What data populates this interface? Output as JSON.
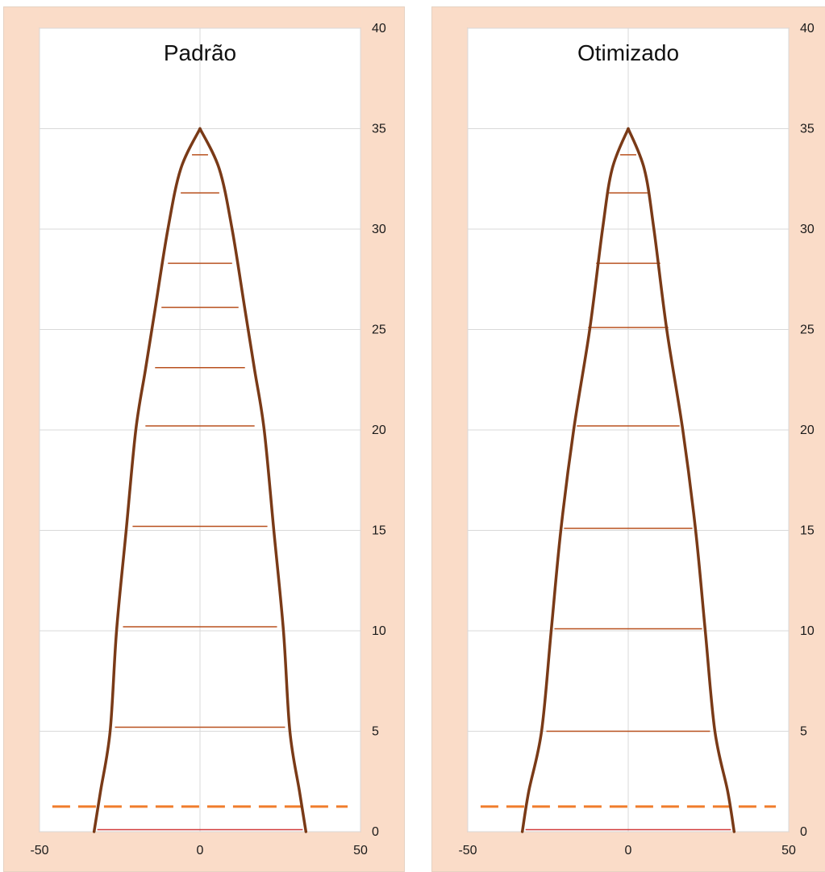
{
  "chart_data": [
    {
      "type": "line",
      "title": "Padrão",
      "xlim": [
        -50,
        50
      ],
      "ylim": [
        0,
        40
      ],
      "x_ticks": [
        "-50",
        "0",
        "50"
      ],
      "y_ticks": [
        "0",
        "5",
        "10",
        "15",
        "20",
        "25",
        "30",
        "35",
        "40"
      ],
      "y_axis_side": "right",
      "grid": true,
      "profile": [
        [
          33,
          0
        ],
        [
          31,
          2
        ],
        [
          28,
          5
        ],
        [
          26,
          10
        ],
        [
          23,
          15
        ],
        [
          20,
          20
        ],
        [
          17,
          23
        ],
        [
          14,
          26
        ],
        [
          10,
          30
        ],
        [
          6,
          33
        ],
        [
          0,
          35
        ]
      ],
      "hlines": [
        {
          "y": 5.2,
          "x1": -26.5,
          "x2": 26.5
        },
        {
          "y": 10.2,
          "x1": -24.0,
          "x2": 24.0
        },
        {
          "y": 15.2,
          "x1": -21.0,
          "x2": 21.0
        },
        {
          "y": 20.2,
          "x1": -17.0,
          "x2": 17.0
        },
        {
          "y": 23.1,
          "x1": -14.0,
          "x2": 14.0
        },
        {
          "y": 26.1,
          "x1": -12.0,
          "x2": 12.0
        },
        {
          "y": 28.3,
          "x1": -10.0,
          "x2": 10.0
        },
        {
          "y": 31.8,
          "x1": -6.0,
          "x2": 6.0
        },
        {
          "y": 33.7,
          "x1": -2.5,
          "x2": 2.5
        }
      ],
      "base_line": {
        "y": 0.1,
        "x1": -32.0,
        "x2": 32.0
      },
      "dashed_line": {
        "y": 1.25,
        "x1": -46,
        "x2": 46
      }
    },
    {
      "type": "line",
      "title": "Otimizado",
      "xlim": [
        -50,
        50
      ],
      "ylim": [
        0,
        40
      ],
      "x_ticks": [
        "-50",
        "0",
        "50"
      ],
      "y_ticks": [
        "0",
        "5",
        "10",
        "15",
        "20",
        "25",
        "30",
        "35",
        "40"
      ],
      "y_axis_side": "right",
      "grid": true,
      "profile": [
        [
          33,
          0
        ],
        [
          31,
          2
        ],
        [
          27,
          5
        ],
        [
          24,
          10
        ],
        [
          21,
          15
        ],
        [
          17,
          20
        ],
        [
          12,
          25
        ],
        [
          8,
          30
        ],
        [
          5,
          33
        ],
        [
          0,
          35
        ]
      ],
      "hlines": [
        {
          "y": 5.0,
          "x1": -25.5,
          "x2": 25.5
        },
        {
          "y": 10.1,
          "x1": -23.0,
          "x2": 23.0
        },
        {
          "y": 15.1,
          "x1": -20.0,
          "x2": 20.0
        },
        {
          "y": 20.2,
          "x1": -16.0,
          "x2": 16.0
        },
        {
          "y": 25.1,
          "x1": -12.5,
          "x2": 12.5
        },
        {
          "y": 28.3,
          "x1": -10.0,
          "x2": 10.0
        },
        {
          "y": 31.8,
          "x1": -6.0,
          "x2": 6.0
        },
        {
          "y": 33.7,
          "x1": -2.5,
          "x2": 2.5
        }
      ],
      "base_line": {
        "y": 0.1,
        "x1": -32.0,
        "x2": 32.0
      },
      "dashed_line": {
        "y": 1.25,
        "x1": -46,
        "x2": 46
      }
    }
  ],
  "colors": {
    "panel_background": "#fadcc8",
    "plot_background": "#ffffff",
    "grid": "#d9d9d9",
    "profile": "#7a3a17",
    "hline": "#b8501e",
    "base_line": "#d23b3b",
    "dashed": "#f07d2c"
  }
}
